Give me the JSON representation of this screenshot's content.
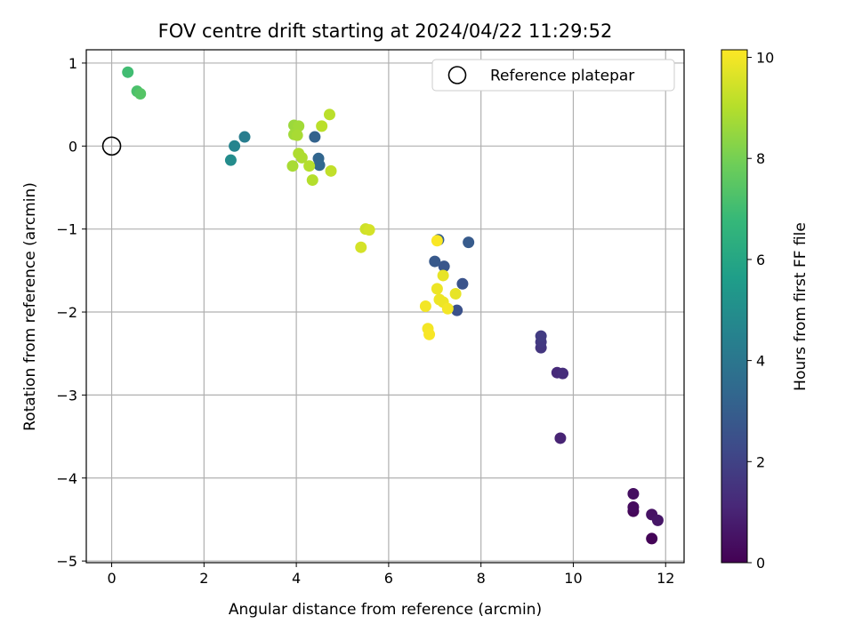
{
  "chart_data": {
    "type": "scatter",
    "title": "FOV centre drift starting at 2024/04/22 11:29:52",
    "xlabel": "Angular distance from reference (arcmin)",
    "ylabel": "Rotation from reference (arcmin)",
    "xlim": [
      -0.55,
      12.4
    ],
    "ylim": [
      -5.02,
      1.16
    ],
    "xticks": [
      0,
      2,
      4,
      6,
      8,
      10,
      12
    ],
    "yticks": [
      -5,
      -4,
      -3,
      -2,
      -1,
      0,
      1
    ],
    "grid": true,
    "legend": {
      "position": "top-right",
      "entries": [
        "Reference platepar"
      ]
    },
    "reference_point": {
      "x": 0,
      "y": 0
    },
    "colorbar": {
      "label": "Hours from first FF file",
      "range": [
        0,
        10.15
      ],
      "ticks": [
        0,
        2,
        4,
        6,
        8,
        10
      ],
      "colormap": "viridis"
    },
    "points": [
      {
        "x": 11.7,
        "y": -4.73,
        "c": 0.1
      },
      {
        "x": 11.3,
        "y": -4.4,
        "c": 0.2
      },
      {
        "x": 11.3,
        "y": -4.35,
        "c": 0.3
      },
      {
        "x": 11.3,
        "y": -4.19,
        "c": 0.4
      },
      {
        "x": 11.7,
        "y": -4.44,
        "c": 0.5
      },
      {
        "x": 11.83,
        "y": -4.51,
        "c": 0.6
      },
      {
        "x": 9.72,
        "y": -3.52,
        "c": 1.0
      },
      {
        "x": 9.65,
        "y": -2.73,
        "c": 1.2
      },
      {
        "x": 9.77,
        "y": -2.74,
        "c": 1.3
      },
      {
        "x": 9.3,
        "y": -2.43,
        "c": 1.6
      },
      {
        "x": 9.3,
        "y": -2.36,
        "c": 1.7
      },
      {
        "x": 9.3,
        "y": -2.29,
        "c": 1.8
      },
      {
        "x": 7.48,
        "y": -1.98,
        "c": 2.5
      },
      {
        "x": 7.6,
        "y": -1.66,
        "c": 2.6
      },
      {
        "x": 7.2,
        "y": -1.45,
        "c": 2.7
      },
      {
        "x": 7.0,
        "y": -1.39,
        "c": 2.8
      },
      {
        "x": 7.73,
        "y": -1.16,
        "c": 2.9
      },
      {
        "x": 7.08,
        "y": -1.13,
        "c": 3.0
      },
      {
        "x": 4.4,
        "y": 0.11,
        "c": 3.2
      },
      {
        "x": 4.48,
        "y": -0.15,
        "c": 3.3
      },
      {
        "x": 4.5,
        "y": -0.23,
        "c": 3.4
      },
      {
        "x": 2.88,
        "y": 0.11,
        "c": 4.3
      },
      {
        "x": 2.66,
        "y": 0.0,
        "c": 4.6
      },
      {
        "x": 2.58,
        "y": -0.17,
        "c": 4.9
      },
      {
        "x": 0.35,
        "y": 0.89,
        "c": 7.0
      },
      {
        "x": 0.55,
        "y": 0.66,
        "c": 7.2
      },
      {
        "x": 0.62,
        "y": 0.63,
        "c": 7.4
      },
      {
        "x": 3.95,
        "y": 0.25,
        "c": 8.6
      },
      {
        "x": 4.05,
        "y": 0.24,
        "c": 8.7
      },
      {
        "x": 3.95,
        "y": 0.14,
        "c": 8.7
      },
      {
        "x": 4.02,
        "y": 0.13,
        "c": 8.8
      },
      {
        "x": 3.92,
        "y": -0.24,
        "c": 8.8
      },
      {
        "x": 4.05,
        "y": -0.09,
        "c": 8.9
      },
      {
        "x": 4.12,
        "y": -0.14,
        "c": 8.9
      },
      {
        "x": 4.28,
        "y": -0.24,
        "c": 9.0
      },
      {
        "x": 4.35,
        "y": -0.41,
        "c": 9.0
      },
      {
        "x": 4.55,
        "y": 0.24,
        "c": 9.1
      },
      {
        "x": 4.72,
        "y": 0.38,
        "c": 9.1
      },
      {
        "x": 4.75,
        "y": -0.3,
        "c": 9.2
      },
      {
        "x": 5.5,
        "y": -1.0,
        "c": 9.4
      },
      {
        "x": 5.58,
        "y": -1.01,
        "c": 9.5
      },
      {
        "x": 5.4,
        "y": -1.22,
        "c": 9.5
      },
      {
        "x": 7.18,
        "y": -1.56,
        "c": 9.8
      },
      {
        "x": 7.45,
        "y": -1.78,
        "c": 9.8
      },
      {
        "x": 7.05,
        "y": -1.72,
        "c": 9.9
      },
      {
        "x": 7.1,
        "y": -1.85,
        "c": 9.9
      },
      {
        "x": 7.18,
        "y": -1.88,
        "c": 9.9
      },
      {
        "x": 6.8,
        "y": -1.93,
        "c": 10.0
      },
      {
        "x": 7.28,
        "y": -1.96,
        "c": 10.0
      },
      {
        "x": 6.85,
        "y": -2.2,
        "c": 10.0
      },
      {
        "x": 6.88,
        "y": -2.27,
        "c": 10.05
      },
      {
        "x": 7.05,
        "y": -1.14,
        "c": 10.1
      }
    ]
  }
}
